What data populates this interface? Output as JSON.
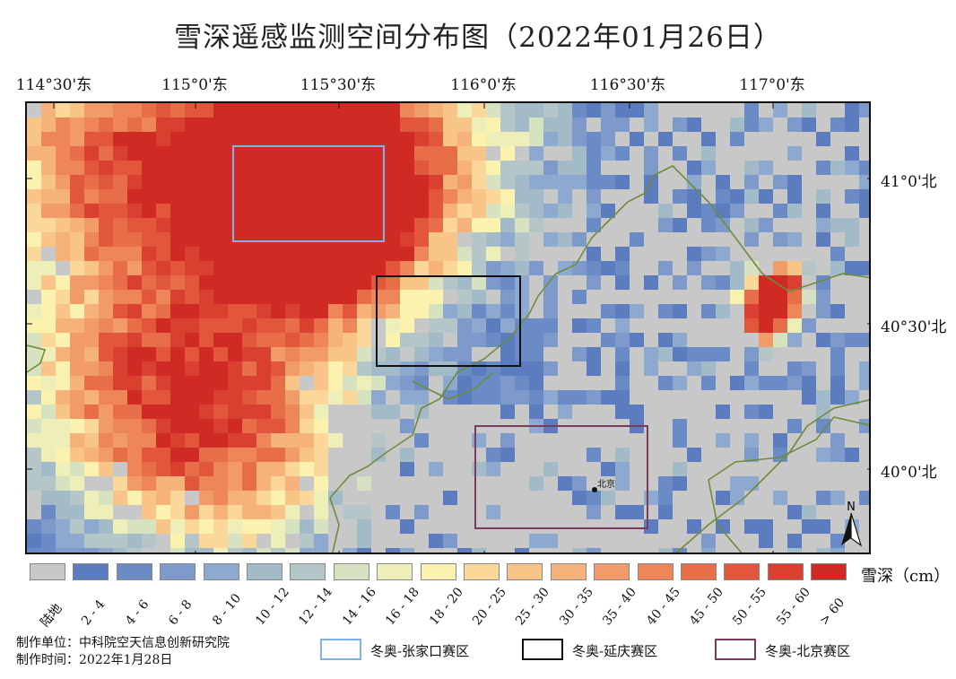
{
  "title": "雪深遥感监测空间分布图（2022年01月26日）",
  "lon_labels": [
    "114°30'东",
    "115°0'东",
    "115°30'东",
    "116°0'东",
    "116°30'东",
    "117°0'东"
  ],
  "lat_labels": [
    "41°0'北",
    "40°30'北",
    "40°0'北"
  ],
  "map": {
    "place_label": "北京",
    "north_label": "N",
    "colors": {
      "land": "#c8c8c8",
      "border_line": "#6e8c3a",
      "zhangjiakou_box": "#7fb2e6",
      "yanqing_box": "#111111",
      "beijing_box": "#7b3b5a"
    }
  },
  "legend": {
    "title": "雪深（cm）",
    "classes": [
      {
        "label": "陆地",
        "color": "#c8c8c8"
      },
      {
        "label": "2 - 4",
        "color": "#5b7dc0"
      },
      {
        "label": "4 - 6",
        "color": "#6a8bc6"
      },
      {
        "label": "6 - 8",
        "color": "#7d9acb"
      },
      {
        "label": "8 - 10",
        "color": "#8ea9cf"
      },
      {
        "label": "10 - 12",
        "color": "#a3bbc9"
      },
      {
        "label": "12 - 14",
        "color": "#b5c6c8"
      },
      {
        "label": "14 - 16",
        "color": "#d6e2c0"
      },
      {
        "label": "16 - 18",
        "color": "#eeefb8"
      },
      {
        "label": "18 - 20",
        "color": "#fbf2b0"
      },
      {
        "label": "20 - 25",
        "color": "#fbd89a"
      },
      {
        "label": "25 - 30",
        "color": "#f8c487"
      },
      {
        "label": "30 - 35",
        "color": "#f5b27b"
      },
      {
        "label": "35 - 40",
        "color": "#f29b6a"
      },
      {
        "label": "40 - 45",
        "color": "#ee8659"
      },
      {
        "label": "45 - 50",
        "color": "#e86e4a"
      },
      {
        "label": "50 - 55",
        "color": "#e2573c"
      },
      {
        "label": "55 - 60",
        "color": "#d9402f"
      },
      {
        "label": "> 60",
        "color": "#cf2a24"
      }
    ]
  },
  "credits": {
    "unit": "制作单位：中科院空天信息创新研究院",
    "time": "制作时间：2022年1月28日"
  },
  "zones": [
    {
      "label": "冬奥-张家口赛区",
      "color": "#7fb2e6"
    },
    {
      "label": "冬奥-延庆赛区",
      "color": "#111111"
    },
    {
      "label": "冬奥-北京赛区",
      "color": "#7b3b5a"
    }
  ]
}
